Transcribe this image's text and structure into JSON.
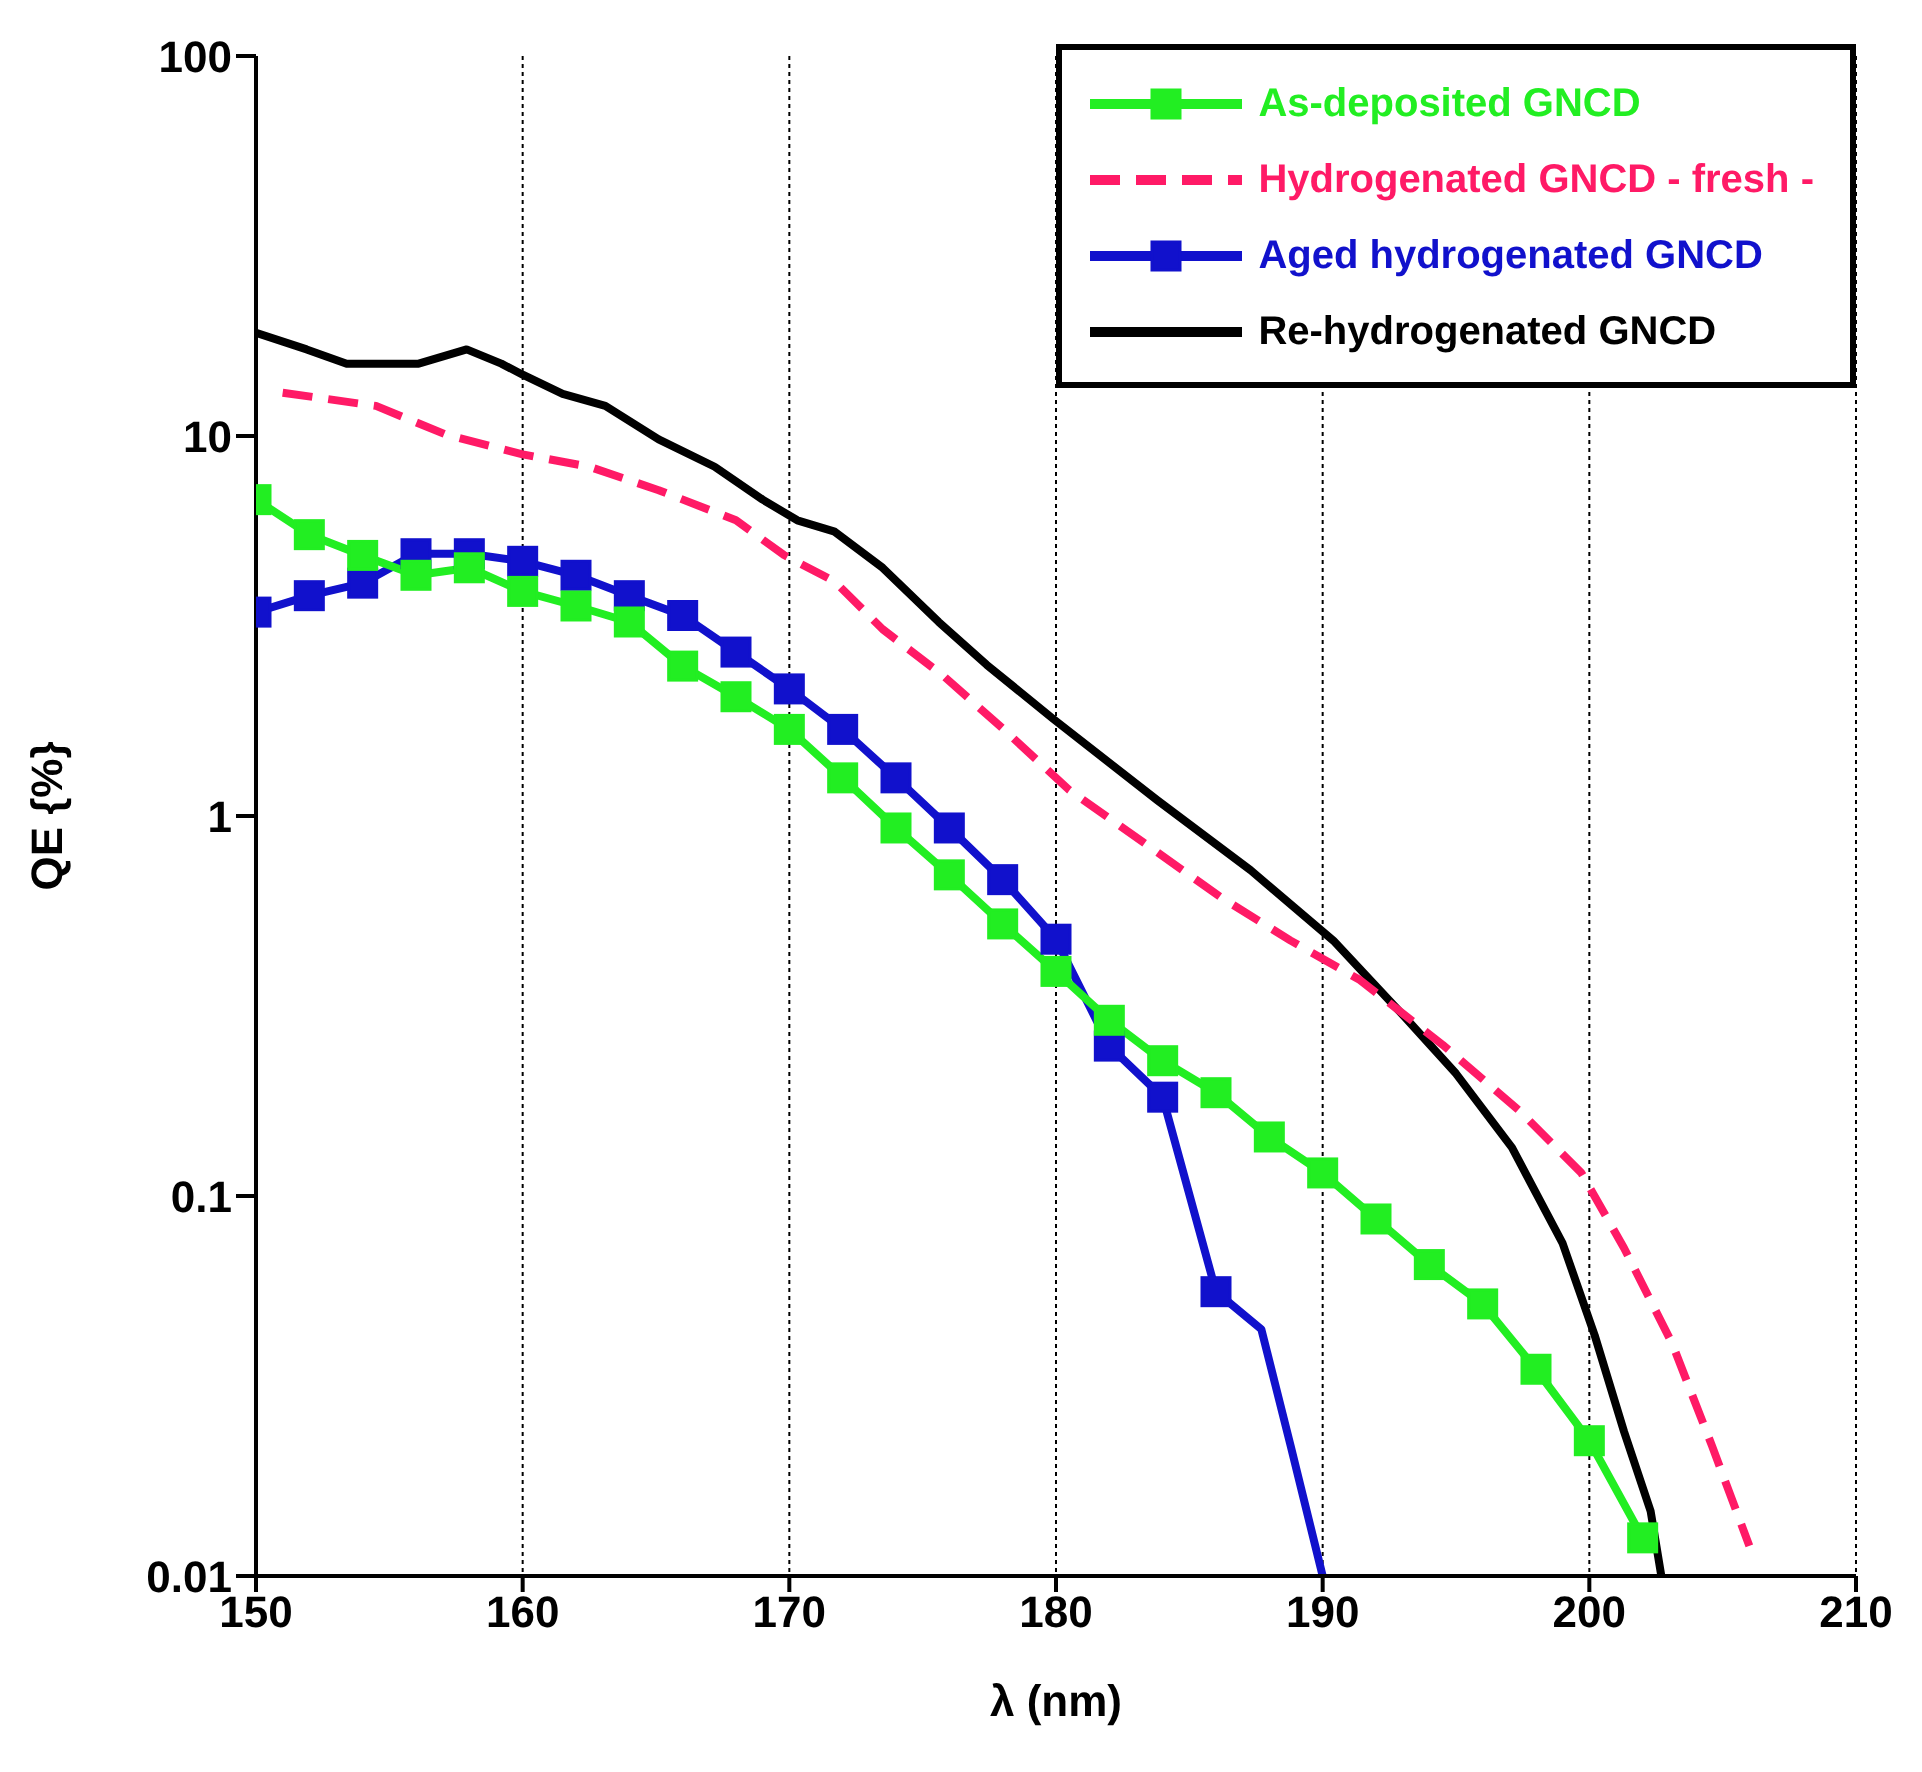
{
  "chart_data": {
    "type": "line",
    "xlabel": "λ (nm)",
    "ylabel": "QE {%}",
    "xlim": [
      150,
      210
    ],
    "xticks": [
      150,
      160,
      170,
      180,
      190,
      200,
      210
    ],
    "ylim": [
      0.01,
      100
    ],
    "yticks": [
      0.01,
      0.1,
      1,
      10,
      100
    ],
    "log": "y",
    "grid": "x",
    "legend": "top right",
    "series": [
      {
        "name": "As-deposited GNCD",
        "color": "#22ee22",
        "marker": "square",
        "line_style": "solid",
        "x": [
          150,
          152,
          154,
          156,
          158,
          160,
          162,
          164,
          166,
          168,
          170,
          172,
          174,
          176,
          178,
          180,
          182,
          184,
          186,
          188,
          190,
          192,
          194,
          196,
          198,
          200,
          202
        ],
        "values": [
          6.8,
          5.5,
          4.85,
          4.3,
          4.5,
          3.9,
          3.57,
          3.24,
          2.48,
          2.06,
          1.69,
          1.26,
          0.93,
          0.7,
          0.52,
          0.39,
          0.29,
          0.227,
          0.187,
          0.143,
          0.115,
          0.087,
          0.066,
          0.052,
          0.035,
          0.0227,
          0.0126
        ]
      },
      {
        "name": "Hydrogenated GNCD - fresh -",
        "color": "#ff1a66",
        "marker": "none",
        "line_style": "dashed",
        "x": [
          151,
          154.5,
          157.1,
          160,
          162.5,
          165.1,
          168,
          169.8,
          171.7,
          173.5,
          175.8,
          178,
          180.5,
          183.4,
          186.2,
          188.8,
          191.4,
          194.5,
          197.4,
          199.7,
          201.3,
          203.1,
          204.6,
          206
        ],
        "values": [
          13,
          12,
          10.1,
          8.95,
          8.3,
          7.2,
          6.0,
          4.86,
          4.14,
          3.1,
          2.33,
          1.7,
          1.17,
          0.84,
          0.61,
          0.47,
          0.37,
          0.25,
          0.167,
          0.115,
          0.073,
          0.041,
          0.022,
          0.012
        ]
      },
      {
        "name": "Aged hydrogenated GNCD",
        "color": "#1111cc",
        "marker": "square",
        "line_style": "solid",
        "x": [
          150,
          152,
          154,
          156,
          158,
          160,
          162,
          164,
          166,
          168,
          170,
          172,
          174,
          176,
          178,
          180,
          182,
          184,
          186
        ],
        "values": [
          3.44,
          3.8,
          4.1,
          4.9,
          4.9,
          4.68,
          4.3,
          3.8,
          3.37,
          2.7,
          2.16,
          1.69,
          1.26,
          0.93,
          0.68,
          0.474,
          0.248,
          0.182,
          0.056
        ]
      },
      {
        "color": "#1111cc",
        "marker": "none",
        "line_style": "solid",
        "x": [
          186,
          187.7,
          188.8,
          190
        ],
        "values": [
          0.056,
          0.0446,
          0.022,
          0.01
        ]
      },
      {
        "name": "Re-hydrogenated GNCD",
        "color": "#000000",
        "marker": "none",
        "line_style": "solid",
        "x": [
          150,
          151.9,
          153.4,
          156.1,
          157.9,
          159.2,
          160,
          161.5,
          163.1,
          165.1,
          167.2,
          169,
          170.3,
          171.7,
          173.5,
          175.6,
          177.4,
          179.9,
          183.8,
          187.3,
          190.4,
          193,
          195,
          197.1,
          199,
          200.2,
          201.3,
          202.3,
          202.7
        ],
        "values": [
          18.7,
          16.9,
          15.5,
          15.5,
          16.9,
          15.5,
          14.5,
          12.9,
          12.0,
          9.8,
          8.3,
          6.8,
          6.0,
          5.6,
          4.5,
          3.24,
          2.5,
          1.8,
          1.1,
          0.72,
          0.47,
          0.3,
          0.21,
          0.134,
          0.075,
          0.043,
          0.024,
          0.0148,
          0.01
        ]
      }
    ]
  }
}
